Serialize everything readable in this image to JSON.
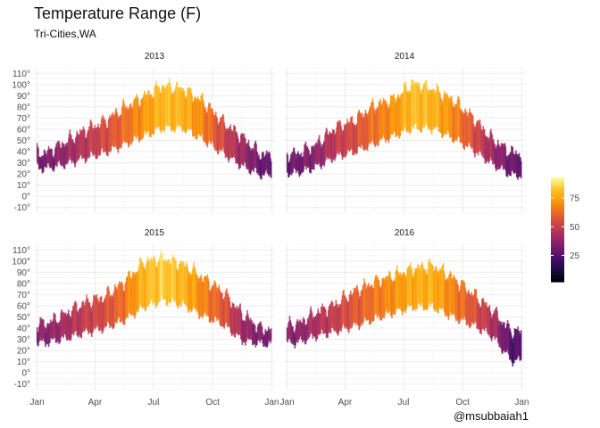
{
  "chart_data": {
    "type": "bar",
    "title": "Temperature Range (F)",
    "subtitle": "Tri-Cities,WA",
    "caption": "@msubbaiah1",
    "xlabel": "",
    "ylabel": "",
    "ylim": [
      -15,
      115
    ],
    "y_ticks": [
      -10,
      0,
      10,
      20,
      30,
      40,
      50,
      60,
      70,
      80,
      90,
      100,
      110
    ],
    "y_tick_suffix": "°",
    "x_ticks": [
      "Jan",
      "Apr",
      "Jul",
      "Oct",
      "Jan"
    ],
    "x_tick_days": [
      0,
      90,
      181,
      273,
      365
    ],
    "grid": true,
    "legend": {
      "position": "right",
      "type": "colorbar",
      "ticks": [
        25,
        50,
        75
      ],
      "range": [
        2,
        93
      ],
      "palette": [
        "#000004",
        "#1b0c41",
        "#4a0c6b",
        "#781c6d",
        "#a52c60",
        "#cf4446",
        "#ed6925",
        "#fb9b06",
        "#fbc42d",
        "#fcffa4"
      ]
    },
    "description": "Daily low-to-high temperature bars, one per day, colored by mean temperature",
    "panels": [
      {
        "year": "2013",
        "monthly_low": [
          26,
          30,
          35,
          40,
          47,
          55,
          62,
          62,
          52,
          40,
          28,
          20
        ],
        "monthly_high": [
          38,
          48,
          58,
          66,
          78,
          88,
          98,
          95,
          84,
          66,
          52,
          36
        ]
      },
      {
        "year": "2014",
        "monthly_low": [
          22,
          27,
          36,
          41,
          48,
          55,
          62,
          62,
          53,
          43,
          30,
          20
        ],
        "monthly_high": [
          37,
          45,
          60,
          67,
          80,
          86,
          100,
          95,
          85,
          70,
          50,
          38
        ]
      },
      {
        "year": "2015",
        "monthly_low": [
          28,
          32,
          37,
          41,
          48,
          60,
          66,
          62,
          52,
          45,
          30,
          27
        ],
        "monthly_high": [
          43,
          52,
          62,
          67,
          80,
          98,
          102,
          96,
          84,
          72,
          52,
          38
        ]
      },
      {
        "year": "2016",
        "monthly_low": [
          28,
          34,
          38,
          43,
          49,
          55,
          60,
          60,
          51,
          44,
          34,
          12
        ],
        "monthly_high": [
          42,
          53,
          60,
          72,
          80,
          86,
          92,
          95,
          84,
          70,
          55,
          36
        ]
      }
    ]
  }
}
